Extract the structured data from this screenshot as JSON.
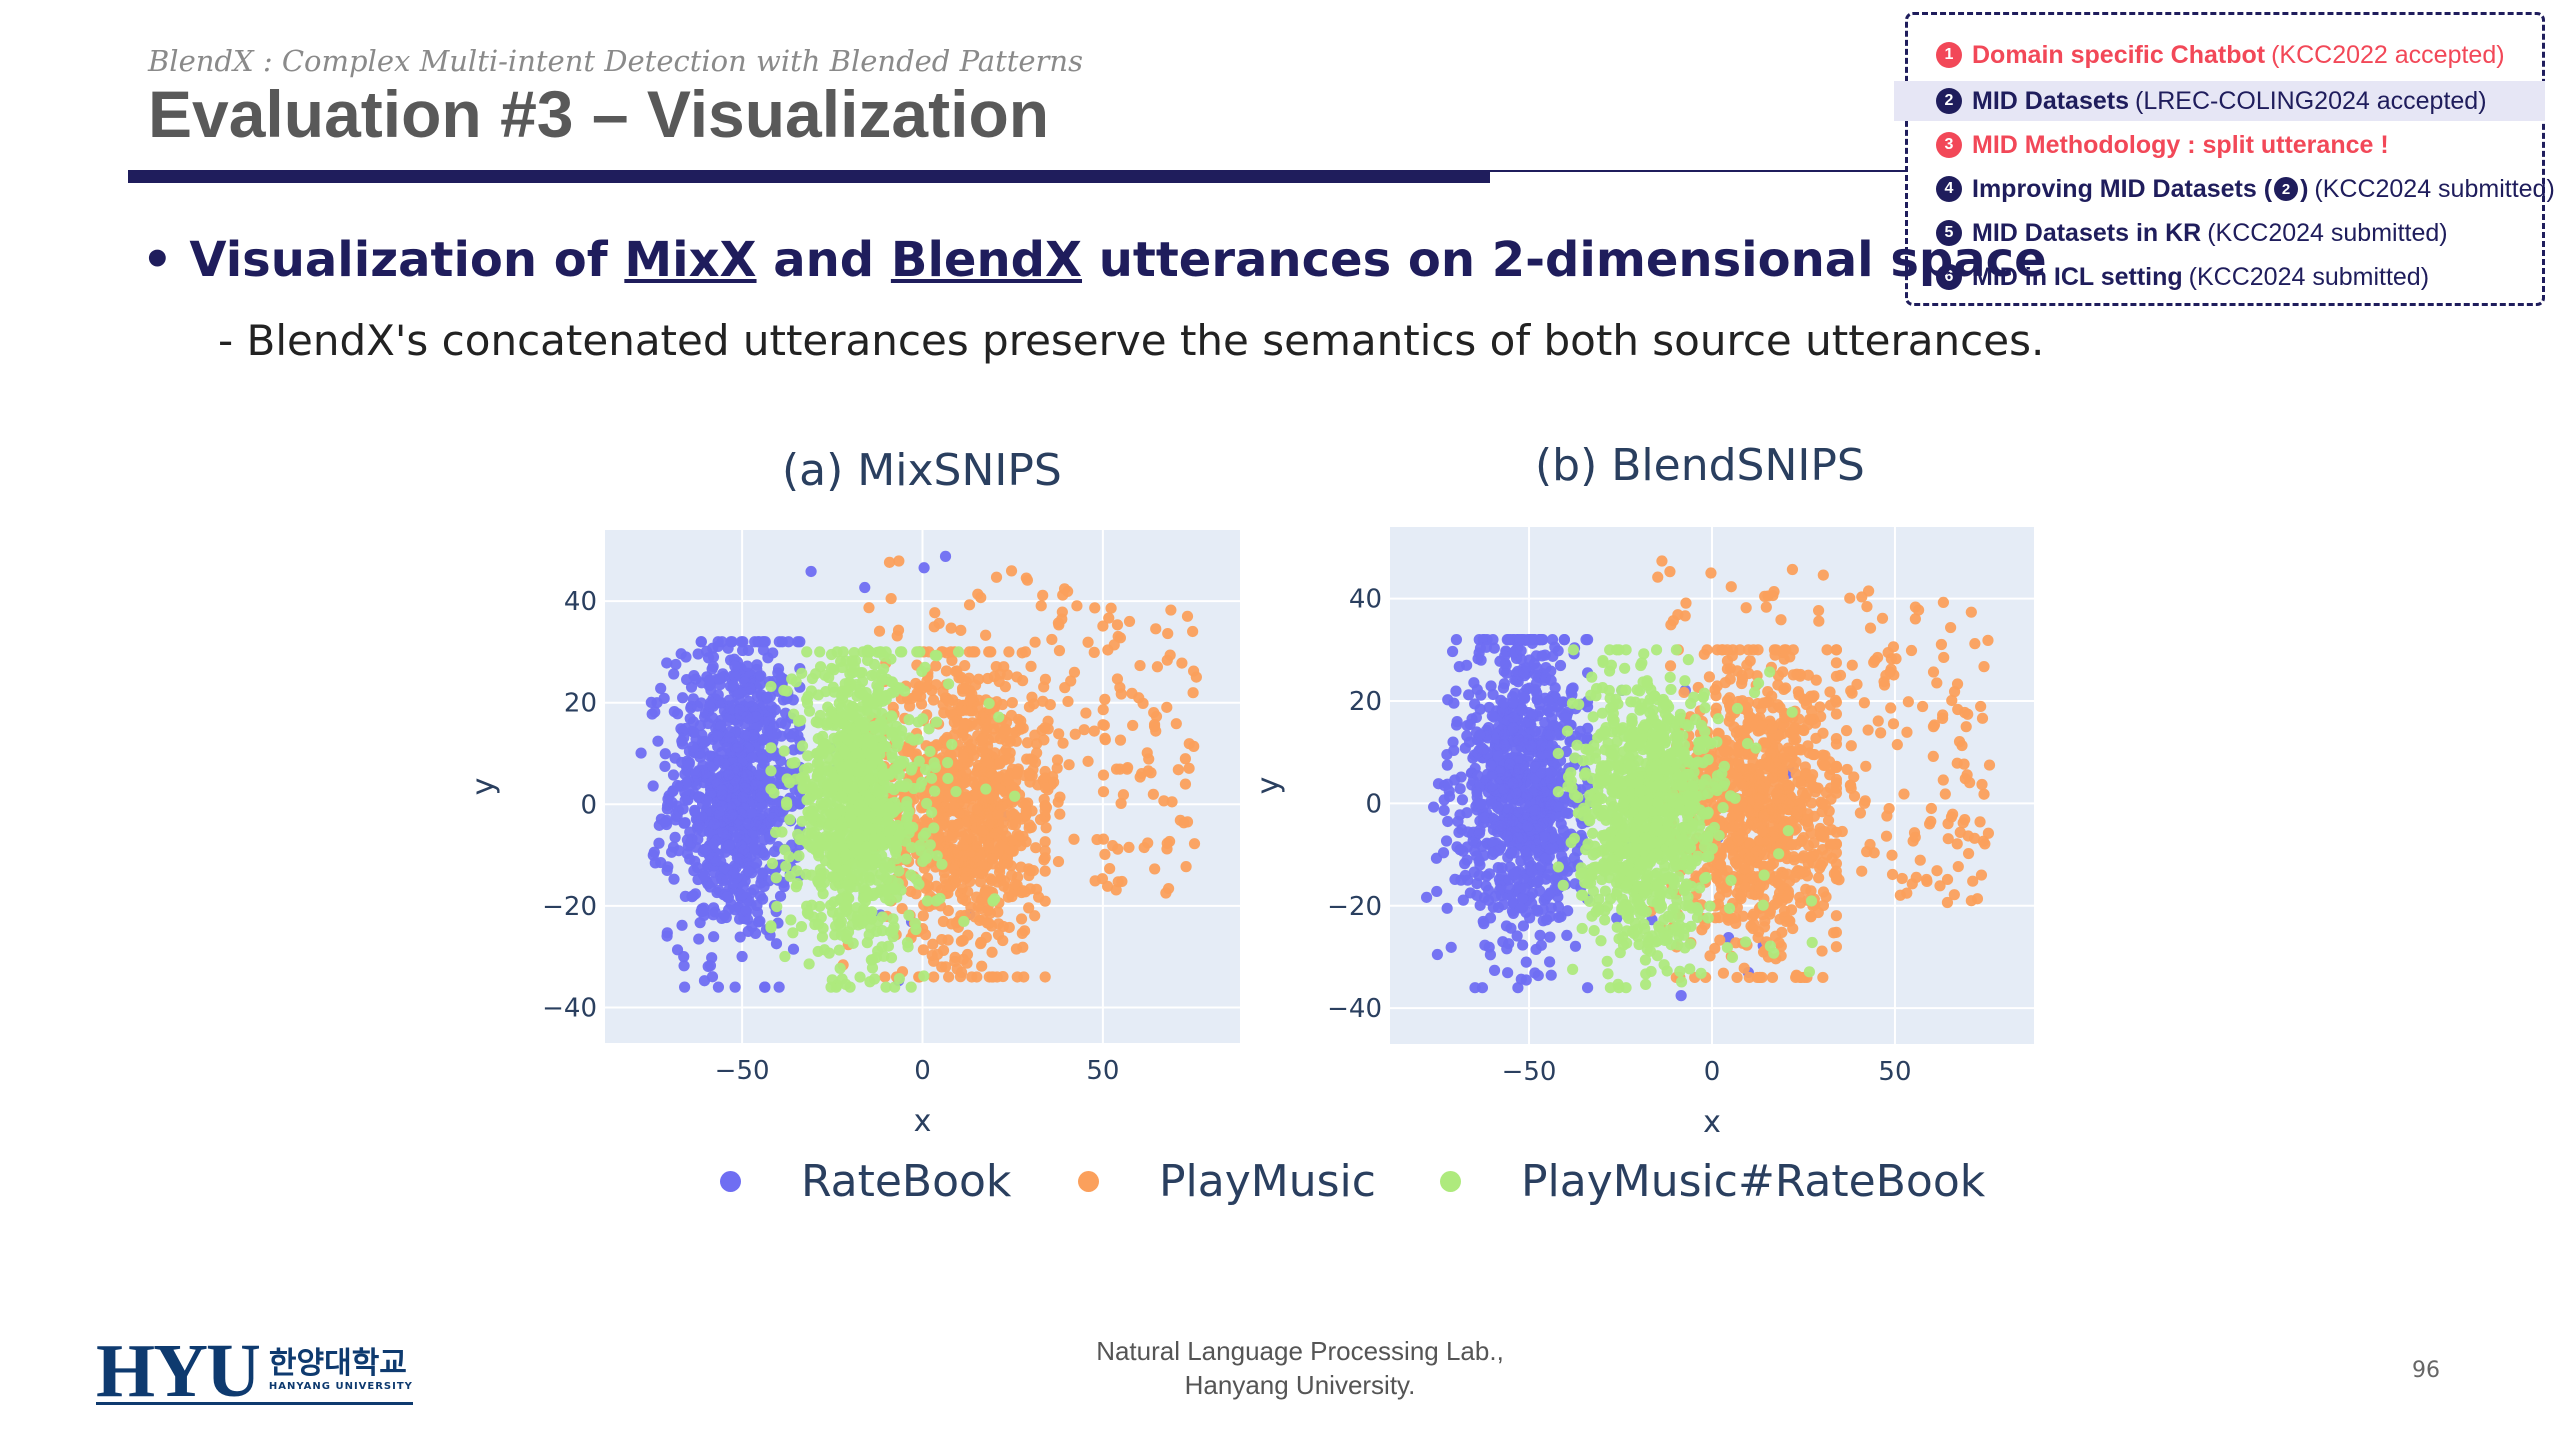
{
  "header": {
    "subtitle": "BlendX : Complex Multi-intent Detection with Blended Patterns",
    "title": "Evaluation #3 – Visualization"
  },
  "content": {
    "bullet_prefix": "Visualization of ",
    "bullet_mixx": "MixX",
    "bullet_and": " and ",
    "bullet_blendx": "BlendX",
    "bullet_suffix": " utterances on 2-dimensional space",
    "sub_bullet": "-  BlendX's concatenated utterances preserve the semantics of both source utterances."
  },
  "roadmap": [
    {
      "num": "1",
      "strong": "Domain specific Chatbot",
      "light": "(KCC2022 accepted)"
    },
    {
      "num": "2",
      "strong": "MID Datasets",
      "light": "(LREC-COLING2024 accepted)"
    },
    {
      "num": "3",
      "strong": "MID Methodology : split utterance !",
      "light": ""
    },
    {
      "num": "4",
      "strong": "Improving MID Datasets (",
      "ref": "2",
      "strong_end": ")",
      "light": "(KCC2024 submitted)"
    },
    {
      "num": "5",
      "strong": "MID Datasets in KR",
      "light": "(KCC2024 submitted)"
    },
    {
      "num": "6",
      "strong": "MID in ICL setting",
      "light": "(KCC2024 submitted)"
    }
  ],
  "colors": {
    "navy": "#1f1d5c",
    "red": "#f24858",
    "ratebook": "#6f6ef2",
    "playmusic": "#fba05c",
    "combo": "#aeea7d"
  },
  "chart_data": [
    {
      "type": "scatter",
      "title": "(a) MixSNIPS",
      "xlabel": "x",
      "ylabel": "y",
      "xlim": [
        -88,
        88
      ],
      "ylim": [
        -47,
        54
      ],
      "xticks": [
        -50,
        0,
        50
      ],
      "yticks": [
        -40,
        -20,
        0,
        20,
        40
      ],
      "xtick_labels": [
        "−50",
        "0",
        "50"
      ],
      "ytick_labels": [
        "−40",
        "−20",
        "0",
        "20",
        "40"
      ],
      "series": [
        {
          "name": "RateBook",
          "description": "dense cluster",
          "center": [
            -52,
            3
          ],
          "spread": [
            9,
            15
          ]
        },
        {
          "name": "PlayMusic",
          "description": "dense cluster with sparse tail to the right",
          "center": [
            12,
            0
          ],
          "spread": [
            11,
            15
          ]
        },
        {
          "name": "PlayMusic#RateBook",
          "description": "dense cluster between the two",
          "center": [
            -18,
            0
          ],
          "spread": [
            9,
            14
          ]
        }
      ]
    },
    {
      "type": "scatter",
      "title": "(b) BlendSNIPS",
      "xlabel": "x",
      "ylabel": "y",
      "xlim": [
        -88,
        88
      ],
      "ylim": [
        -47,
        54
      ],
      "xticks": [
        -50,
        0,
        50
      ],
      "yticks": [
        -40,
        -20,
        0,
        20,
        40
      ],
      "xtick_labels": [
        "−50",
        "0",
        "50"
      ],
      "ytick_labels": [
        "−40",
        "−20",
        "0",
        "20",
        "40"
      ],
      "series": [
        {
          "name": "RateBook",
          "description": "dense cluster",
          "center": [
            -52,
            3
          ],
          "spread": [
            9,
            15
          ]
        },
        {
          "name": "PlayMusic",
          "description": "dense cluster with sparse tail to the right",
          "center": [
            12,
            0
          ],
          "spread": [
            11,
            15
          ]
        },
        {
          "name": "PlayMusic#RateBook",
          "description": "dense cluster between the two",
          "center": [
            -18,
            -2
          ],
          "spread": [
            9,
            13
          ]
        }
      ]
    }
  ],
  "legend": [
    {
      "label": "RateBook",
      "color": "#6f6ef2"
    },
    {
      "label": "PlayMusic",
      "color": "#fba05c"
    },
    {
      "label": "PlayMusic#RateBook",
      "color": "#aeea7d"
    }
  ],
  "footer": {
    "lab_line1": "Natural Language Processing Lab.,",
    "lab_line2": "Hanyang University.",
    "page": "96",
    "logo_text": "HYU",
    "logo_kr": "한양대학교",
    "logo_en": "HANYANG UNIVERSITY"
  }
}
